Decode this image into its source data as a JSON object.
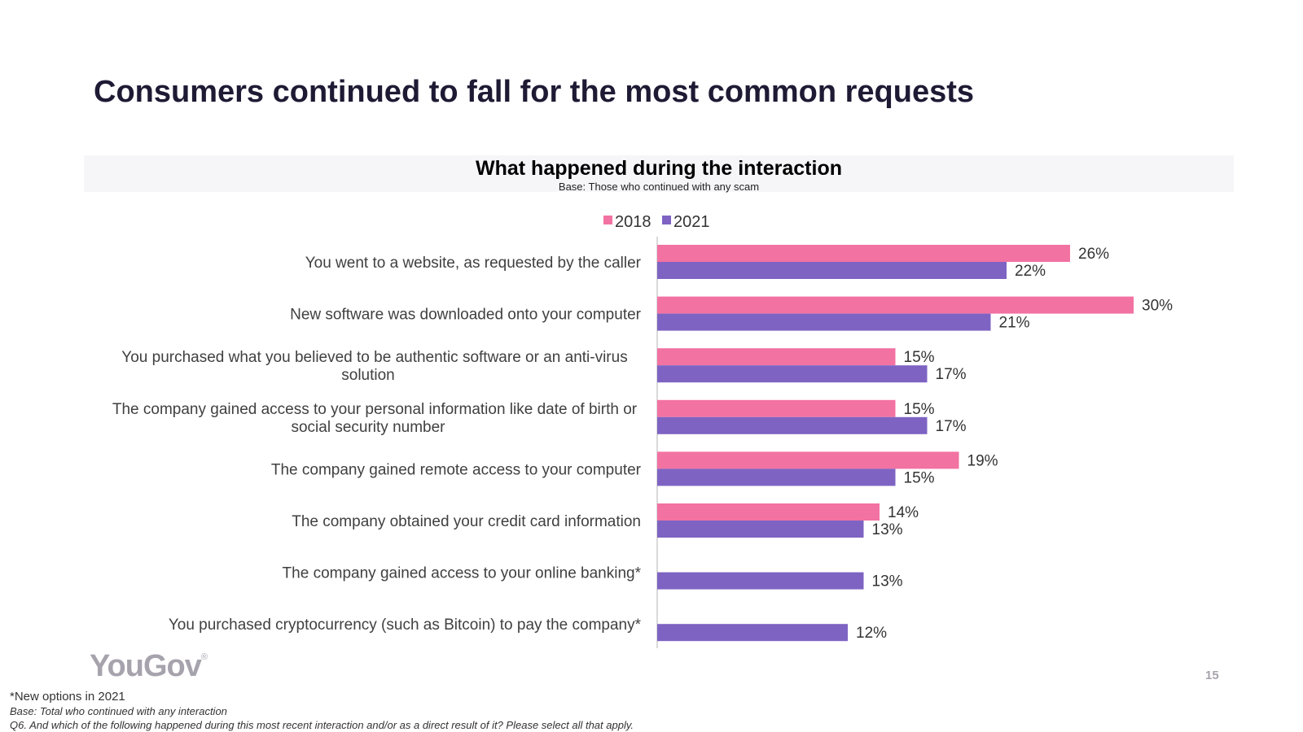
{
  "slide": {
    "title": "Consumers continued to fall for the most common requests",
    "logo_text": "YouGov",
    "logo_mark": "®",
    "page_number": "15",
    "footnote_new": "*New options in 2021",
    "footnote_base": "Base: Total who continued with any interaction",
    "footnote_question": "Q6. And which of the following happened during this most recent interaction and/or as a direct result of it? Please select all that apply."
  },
  "colors": {
    "series_2018": "#f272a2",
    "series_2021": "#7e63c3",
    "axis": "#d9d9d9"
  },
  "chart_data": {
    "type": "bar",
    "orientation": "horizontal",
    "title": "What happened during the interaction",
    "subtitle": "Base: Those who continued with any scam",
    "legend_position": "top",
    "categories": [
      [
        "You went to a website, as requested by the caller"
      ],
      [
        "New software was downloaded onto your computer"
      ],
      [
        "You purchased what you believed to be authentic software or an anti-virus",
        "solution"
      ],
      [
        "The company gained access to your personal information like date of birth or",
        "social security number"
      ],
      [
        "The company gained remote access to your computer"
      ],
      [
        "The company obtained your credit card information"
      ],
      [
        "The company gained access to your online banking*"
      ],
      [
        "You purchased cryptocurrency (such as Bitcoin) to pay the company*"
      ]
    ],
    "series": [
      {
        "name": "2018",
        "values": [
          26,
          30,
          15,
          15,
          19,
          14,
          null,
          null
        ]
      },
      {
        "name": "2021",
        "values": [
          22,
          21,
          17,
          17,
          15,
          13,
          13,
          12
        ]
      }
    ],
    "value_suffix": "%",
    "xlim": [
      0,
      30
    ]
  }
}
